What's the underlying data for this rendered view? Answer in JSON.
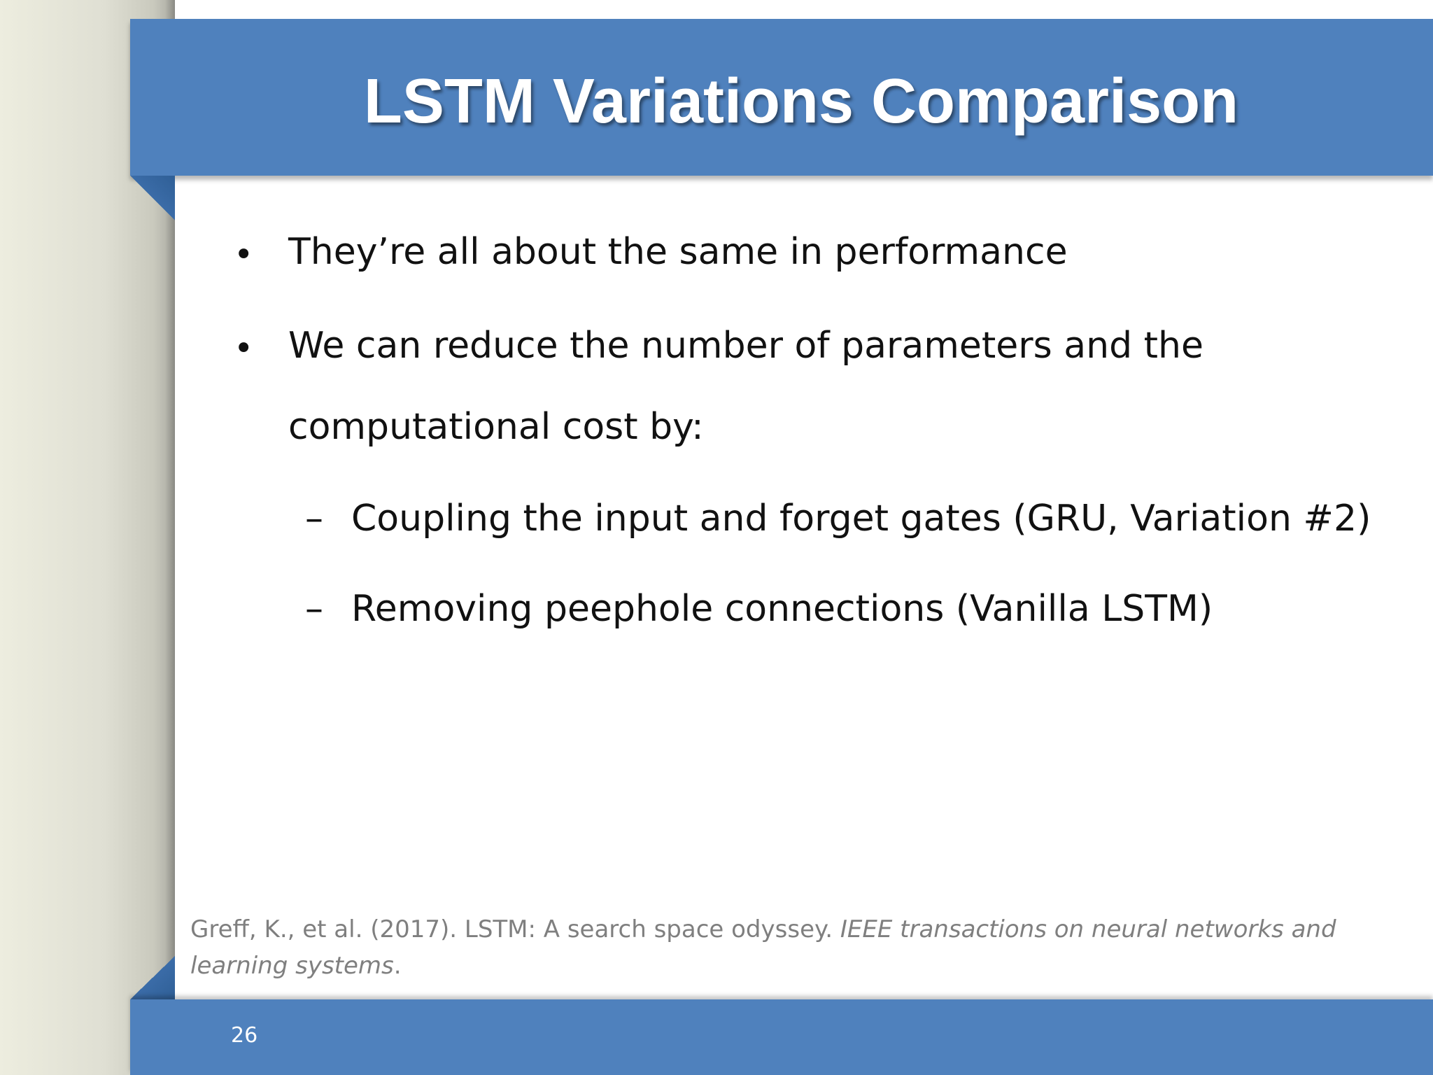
{
  "slide": {
    "title": "LSTM Variations Comparison",
    "bullets": [
      {
        "marker": "•",
        "lines": [
          "They’re all about the same in performance"
        ]
      },
      {
        "marker": "•",
        "lines": [
          "We can reduce the number of parameters and the",
          "computational cost by:"
        ]
      }
    ],
    "sub_bullets": [
      {
        "marker": "–",
        "text": "Coupling the input and forget gates (GRU, Variation #2)"
      },
      {
        "marker": "–",
        "text": "Removing peephole connections (Vanilla LSTM)"
      }
    ],
    "citation": {
      "plain": "Greff, K., et al. (2017). LSTM: A search space odyssey. ",
      "italic": "IEEE transactions on neural networks and learning systems",
      "end": "."
    },
    "page_number": "26"
  },
  "colors": {
    "banner": "#4f81bd",
    "fold": "#3b6ca8",
    "body_text": "#111111",
    "citation_text": "#7f7f7f"
  }
}
